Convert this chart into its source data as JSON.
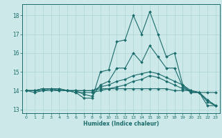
{
  "title": "",
  "xlabel": "Humidex (Indice chaleur)",
  "ylabel": "",
  "xlim": [
    -0.5,
    23.5
  ],
  "ylim": [
    12.8,
    18.6
  ],
  "yticks": [
    13,
    14,
    15,
    16,
    17,
    18
  ],
  "xticks": [
    0,
    1,
    2,
    3,
    4,
    5,
    6,
    7,
    8,
    9,
    10,
    11,
    12,
    13,
    14,
    15,
    16,
    17,
    18,
    19,
    20,
    21,
    22,
    23
  ],
  "background_color": "#cce8e8",
  "line_color": "#1a6b6b",
  "grid_color": "#aad4d4",
  "lines": [
    [
      14.0,
      13.9,
      14.0,
      14.1,
      14.0,
      14.0,
      13.9,
      13.6,
      13.6,
      15.0,
      15.1,
      16.6,
      16.7,
      18.0,
      17.0,
      18.2,
      17.0,
      15.8,
      16.0,
      14.3,
      13.9,
      13.9,
      13.2,
      13.2
    ],
    [
      14.0,
      14.0,
      14.1,
      14.1,
      14.1,
      14.0,
      14.0,
      14.0,
      14.0,
      14.1,
      14.1,
      14.1,
      14.1,
      14.1,
      14.1,
      14.1,
      14.1,
      14.1,
      14.0,
      14.0,
      14.0,
      13.9,
      13.9,
      13.9
    ],
    [
      14.0,
      14.0,
      14.0,
      14.0,
      14.0,
      14.0,
      13.9,
      13.9,
      13.9,
      14.0,
      14.1,
      14.2,
      14.3,
      14.5,
      14.6,
      14.8,
      14.7,
      14.5,
      14.3,
      14.1,
      14.0,
      13.9,
      13.5,
      13.2
    ],
    [
      14.0,
      14.0,
      14.1,
      14.1,
      14.1,
      14.0,
      14.0,
      14.0,
      14.0,
      14.2,
      14.3,
      14.5,
      14.6,
      14.8,
      14.9,
      15.0,
      14.9,
      14.7,
      14.5,
      14.3,
      14.0,
      13.9,
      13.5,
      13.2
    ],
    [
      14.0,
      14.0,
      14.1,
      14.1,
      14.0,
      14.0,
      14.0,
      13.8,
      13.7,
      14.3,
      14.5,
      15.2,
      15.2,
      16.0,
      15.5,
      16.4,
      15.8,
      15.2,
      15.2,
      14.2,
      13.9,
      13.9,
      13.4,
      13.2
    ]
  ]
}
